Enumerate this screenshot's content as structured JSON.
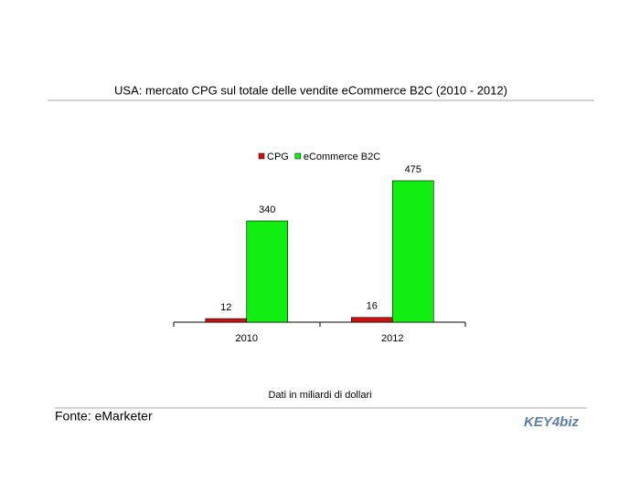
{
  "chart_data": {
    "type": "bar",
    "title": "USA: mercato CPG sul totale delle vendite eCommerce B2C (2010 - 2012)",
    "categories": [
      "2010",
      "2012"
    ],
    "series": [
      {
        "name": "CPG",
        "color": "#cc1111",
        "values": [
          12,
          16
        ]
      },
      {
        "name": "eCommerce B2C",
        "color": "#11ee11",
        "values": [
          340,
          475
        ]
      }
    ],
    "note": "Dati in miliardi di dollari"
  },
  "source": "Fonte: eMarketer",
  "logo": "KEY4biz"
}
